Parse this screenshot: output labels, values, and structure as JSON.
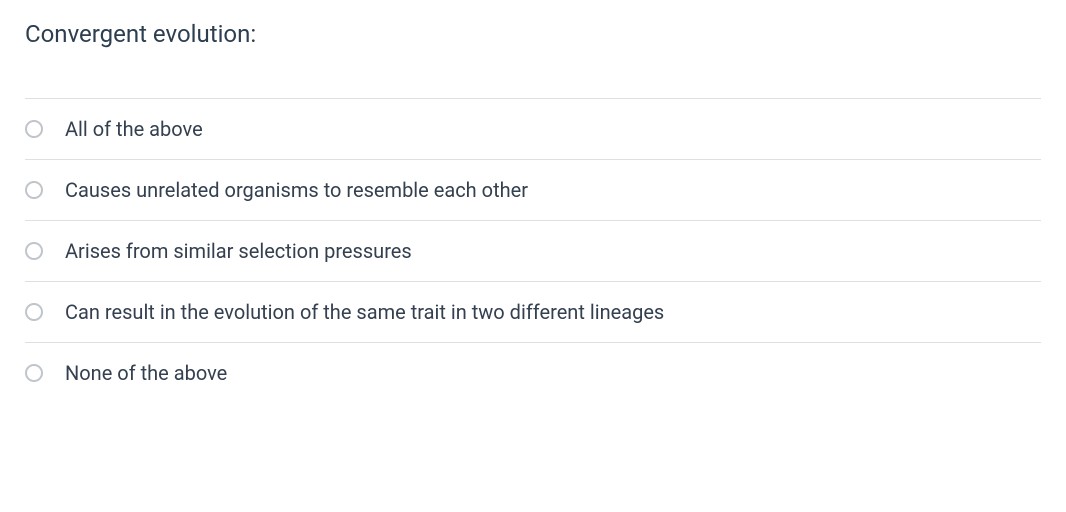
{
  "question": {
    "text": "Convergent evolution:",
    "text_color": "#2c3e50",
    "text_fontsize": 24
  },
  "options": [
    {
      "label": "All of the above"
    },
    {
      "label": "Causes unrelated organisms to resemble each other"
    },
    {
      "label": "Arises from similar selection pressures"
    },
    {
      "label": "Can result in the evolution of the same trait in two different lineages"
    },
    {
      "label": "None of the above"
    }
  ],
  "styling": {
    "option_text_color": "#344050",
    "option_fontsize": 20,
    "border_color": "#e0e0e0",
    "radio_border_color": "#bfc5cb",
    "background_color": "#ffffff"
  }
}
